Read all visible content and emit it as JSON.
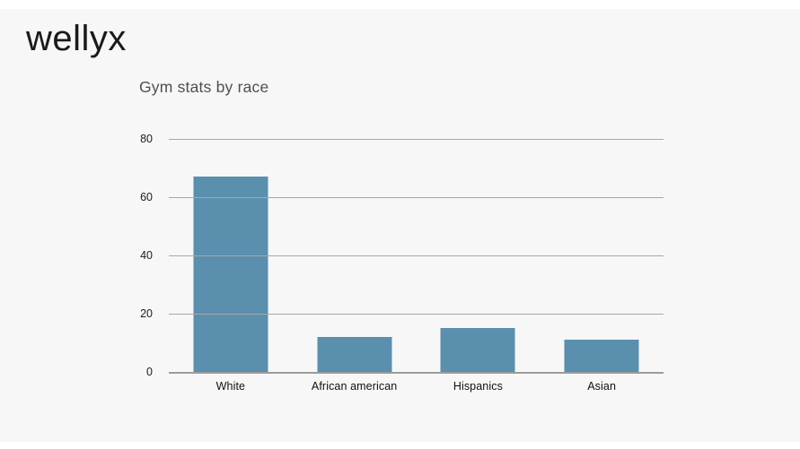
{
  "page": {
    "background": "#f7f7f7",
    "letterbox_band_color": "#ffffff"
  },
  "brand": {
    "logo_text": "wellyx",
    "logo_color": "#1a1a1a"
  },
  "chart_data": {
    "type": "bar",
    "title": "Gym stats by race",
    "categories": [
      "White",
      "African american",
      "Hispanics",
      "Asian"
    ],
    "values": [
      67,
      12,
      15,
      11
    ],
    "xlabel": "",
    "ylabel": "",
    "ylim": [
      0,
      80
    ],
    "yticks": [
      0,
      20,
      40,
      60,
      80
    ],
    "grid": "horizontal",
    "legend": "none",
    "bar_color": "#5a8fad",
    "gridline_color": "#a8a8a8",
    "baseline_color": "#9b9b9b",
    "title_color": "#4f4f4f",
    "tick_label_color": "#1c1c1c",
    "category_label_color": "#101010"
  }
}
